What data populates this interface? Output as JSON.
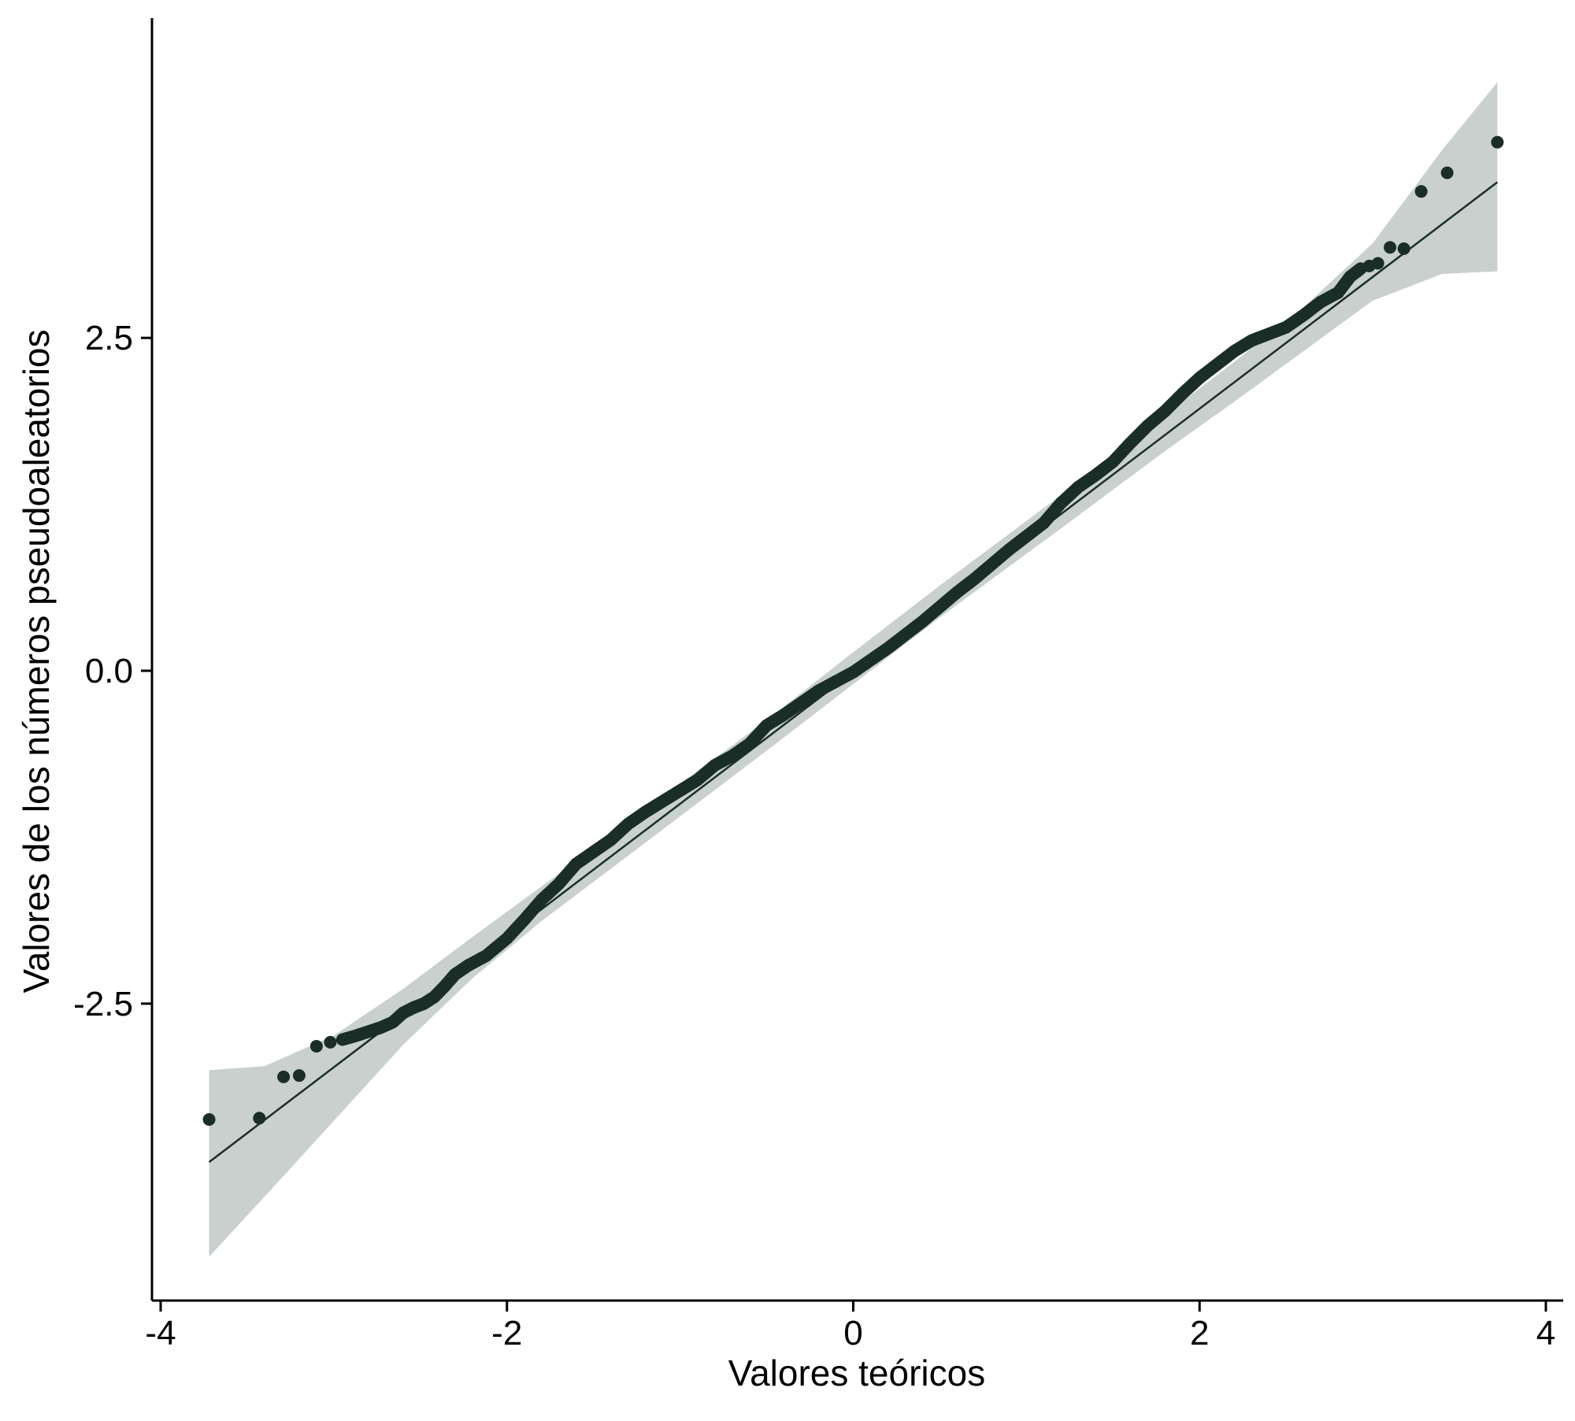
{
  "chart_data": {
    "type": "scatter",
    "subtype": "qq-plot",
    "title": "",
    "xlabel": "Valores teóricos",
    "ylabel": "Valores de los números pseudoaleatorios",
    "xlim": [
      -4.05,
      4.1
    ],
    "ylim": [
      -4.73,
      4.89
    ],
    "xticks": [
      -4,
      -2,
      0,
      2,
      4
    ],
    "xtick_labels": [
      "-4",
      "-2",
      "0",
      "2",
      "4"
    ],
    "yticks": [
      -2.5,
      0,
      2.5
    ],
    "ytick_labels": [
      "-2.5",
      "0.0",
      "2.5"
    ],
    "grid": false,
    "legend": "none",
    "colors": {
      "points": "#1a2e27",
      "line": "#1a2e27",
      "band": "#c9d0ce",
      "axis": "#000000"
    },
    "reference_line": {
      "x": [
        -3.72,
        3.72
      ],
      "y": [
        -3.69,
        3.67
      ]
    },
    "confidence_band": {
      "x": [
        -3.72,
        -3.4,
        -3.0,
        -2.6,
        -2.2,
        -1.8,
        -1.2,
        -0.5,
        0.0,
        0.5,
        1.2,
        1.8,
        2.2,
        2.6,
        3.0,
        3.4,
        3.72
      ],
      "upper": [
        -3.0,
        -2.97,
        -2.74,
        -2.39,
        -2.0,
        -1.62,
        -1.04,
        -0.37,
        0.14,
        0.64,
        1.32,
        1.92,
        2.32,
        2.73,
        3.21,
        3.91,
        4.42
      ],
      "lower": [
        -4.4,
        -3.95,
        -3.38,
        -2.81,
        -2.31,
        -1.88,
        -1.29,
        -0.6,
        -0.1,
        0.4,
        1.07,
        1.65,
        2.02,
        2.4,
        2.78,
        2.98,
        3.0
      ]
    },
    "points": {
      "x": [
        -3.72,
        -3.43,
        -3.29,
        -3.2,
        -3.1,
        -3.02,
        -2.95,
        -2.87,
        -2.8,
        -2.73,
        -2.66,
        -2.6,
        -2.54,
        -2.48,
        -2.42,
        -2.36,
        -2.3,
        -2.22,
        -2.12,
        -2.0,
        -1.9,
        -1.8,
        -1.7,
        -1.6,
        -1.5,
        -1.4,
        -1.3,
        -1.2,
        -1.1,
        -1.0,
        -0.9,
        -0.8,
        -0.7,
        -0.6,
        -0.5,
        -0.4,
        -0.3,
        -0.2,
        -0.1,
        0.0,
        0.1,
        0.2,
        0.3,
        0.4,
        0.5,
        0.6,
        0.7,
        0.8,
        0.9,
        1.0,
        1.1,
        1.2,
        1.3,
        1.4,
        1.5,
        1.6,
        1.7,
        1.8,
        1.9,
        2.0,
        2.1,
        2.2,
        2.3,
        2.4,
        2.5,
        2.6,
        2.7,
        2.8,
        2.87,
        2.93,
        2.98,
        3.03,
        3.1,
        3.18,
        3.28,
        3.43,
        3.72
      ],
      "y": [
        -3.37,
        -3.36,
        -3.05,
        -3.04,
        -2.82,
        -2.79,
        -2.77,
        -2.74,
        -2.71,
        -2.68,
        -2.64,
        -2.57,
        -2.53,
        -2.5,
        -2.45,
        -2.37,
        -2.28,
        -2.21,
        -2.14,
        -2.01,
        -1.87,
        -1.72,
        -1.6,
        -1.45,
        -1.36,
        -1.27,
        -1.15,
        -1.06,
        -0.98,
        -0.9,
        -0.82,
        -0.71,
        -0.64,
        -0.55,
        -0.41,
        -0.33,
        -0.24,
        -0.15,
        -0.08,
        -0.01,
        0.08,
        0.17,
        0.27,
        0.37,
        0.48,
        0.59,
        0.69,
        0.8,
        0.91,
        1.01,
        1.11,
        1.26,
        1.38,
        1.47,
        1.57,
        1.71,
        1.84,
        1.95,
        2.08,
        2.2,
        2.3,
        2.4,
        2.48,
        2.53,
        2.58,
        2.67,
        2.77,
        2.84,
        2.96,
        3.02,
        3.04,
        3.06,
        3.18,
        3.17,
        3.6,
        3.74,
        3.97
      ]
    }
  }
}
